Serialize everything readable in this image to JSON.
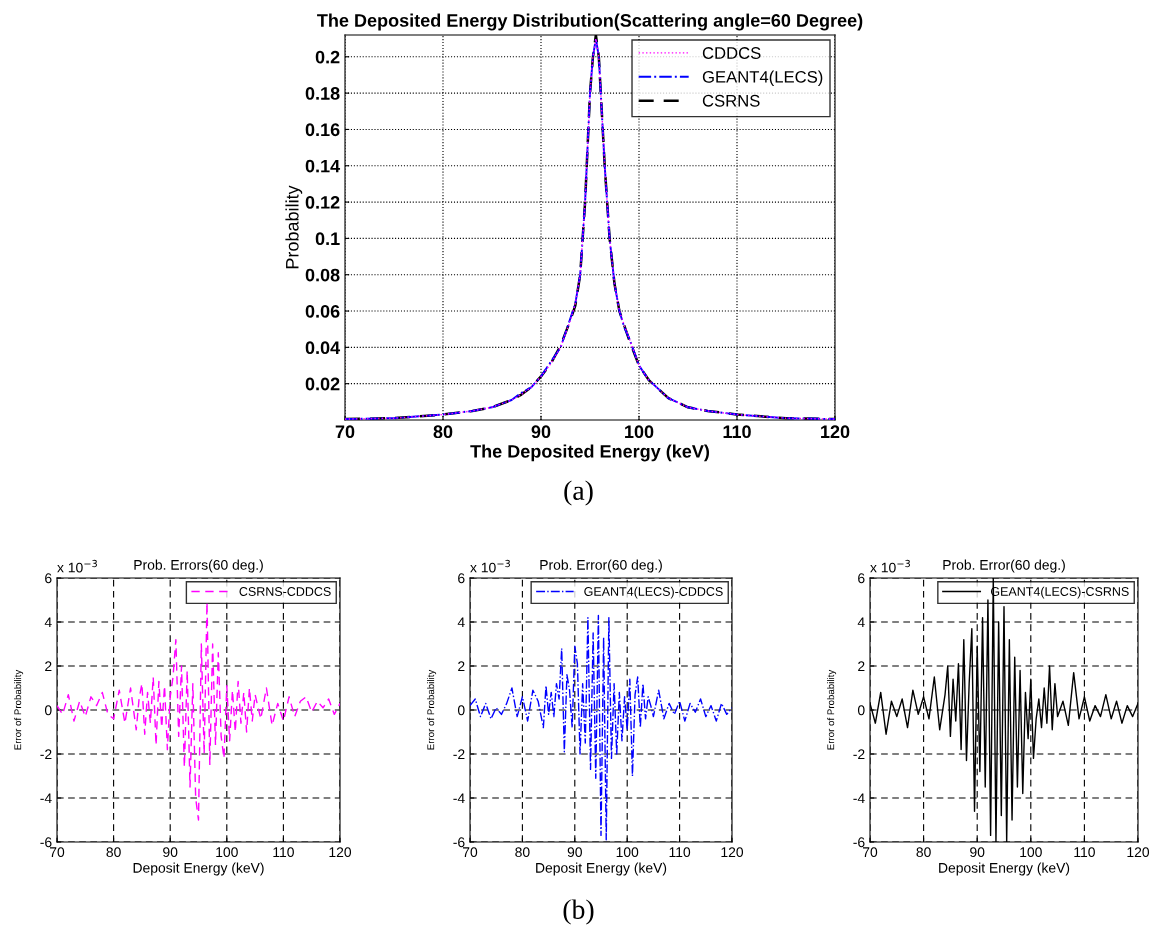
{
  "chart_data": [
    {
      "type": "line",
      "title": "The Deposited Energy Distribution(Scattering angle=60 Degree)",
      "xlabel": "The Deposited Energy (keV)",
      "ylabel": "Probability",
      "annotations": [
        "(a)"
      ],
      "x": [
        70,
        75,
        80,
        83,
        85,
        87,
        88,
        89,
        90,
        91,
        92,
        93,
        93.5,
        94,
        94.5,
        95,
        95.3,
        95.6,
        95.9,
        96.2,
        96.5,
        97,
        97.5,
        98,
        98.5,
        99,
        100,
        101,
        102,
        103,
        105,
        107,
        110,
        115,
        120
      ],
      "series": [
        {
          "name": "CDDCS",
          "color": "#ff00ff",
          "line_style": "dotted",
          "values": [
            0.0005,
            0.001,
            0.003,
            0.005,
            0.007,
            0.011,
            0.014,
            0.018,
            0.024,
            0.031,
            0.04,
            0.055,
            0.064,
            0.08,
            0.12,
            0.18,
            0.2,
            0.21,
            0.2,
            0.17,
            0.14,
            0.1,
            0.075,
            0.06,
            0.052,
            0.045,
            0.03,
            0.022,
            0.017,
            0.012,
            0.007,
            0.005,
            0.003,
            0.001,
            0.0005
          ]
        },
        {
          "name": "GEANT4(LECS)",
          "color": "#0000ff",
          "line_style": "dashdot",
          "values": [
            0.0005,
            0.001,
            0.003,
            0.005,
            0.007,
            0.011,
            0.015,
            0.018,
            0.024,
            0.032,
            0.04,
            0.056,
            0.064,
            0.08,
            0.12,
            0.18,
            0.2,
            0.21,
            0.2,
            0.17,
            0.14,
            0.1,
            0.075,
            0.06,
            0.051,
            0.045,
            0.03,
            0.022,
            0.017,
            0.012,
            0.007,
            0.005,
            0.003,
            0.001,
            0.0005
          ]
        },
        {
          "name": "CSRNS",
          "color": "#000000",
          "line_style": "dashed",
          "values": [
            0.0005,
            0.001,
            0.003,
            0.005,
            0.007,
            0.011,
            0.014,
            0.018,
            0.024,
            0.031,
            0.041,
            0.055,
            0.063,
            0.08,
            0.12,
            0.18,
            0.2,
            0.212,
            0.2,
            0.17,
            0.14,
            0.1,
            0.075,
            0.06,
            0.052,
            0.044,
            0.03,
            0.022,
            0.017,
            0.012,
            0.007,
            0.005,
            0.003,
            0.001,
            0.0005
          ]
        }
      ],
      "xlim": [
        70,
        120
      ],
      "xticks": [
        70,
        80,
        90,
        100,
        110,
        120
      ],
      "ylim": [
        0,
        0.212
      ],
      "yticks": [
        0.02,
        0.04,
        0.06,
        0.08,
        0.1,
        0.12,
        0.14,
        0.16,
        0.18,
        0.2
      ],
      "grid": true,
      "legend": "top right"
    },
    {
      "type": "line",
      "title": "Prob. Errors(60 deg.)",
      "xlabel": "Deposit Energy (keV)",
      "ylabel": "Error of Probability",
      "annotations": [
        "x 10$^{−3}$"
      ],
      "x": [
        70,
        71,
        72,
        73,
        74,
        75,
        76,
        77,
        78,
        79,
        80,
        81,
        82,
        83,
        84,
        84.5,
        85,
        85.5,
        86,
        86.5,
        87,
        87.5,
        88,
        88.5,
        89,
        89.5,
        90,
        90.5,
        91,
        91.5,
        92,
        92.5,
        93,
        93.5,
        94,
        94.5,
        95,
        95.5,
        96,
        96.5,
        97,
        97.5,
        98,
        98.5,
        99,
        99.5,
        100,
        100.5,
        101,
        101.5,
        102,
        102.5,
        103,
        103.5,
        104,
        104.5,
        105,
        106,
        107,
        108,
        109,
        110,
        111,
        112,
        113,
        114,
        115,
        116,
        117,
        118,
        119,
        120
      ],
      "series": [
        {
          "name": "CSRNS-CDDCS",
          "color": "#ff00ff",
          "line_style": "dashed",
          "values": [
            0.2,
            -0.2,
            0.7,
            -0.5,
            0.4,
            -0.3,
            0.6,
            0.2,
            0.8,
            -0.2,
            -0.4,
            0.9,
            -0.6,
            1.0,
            -0.9,
            0.5,
            1.2,
            -1.1,
            0.8,
            -0.6,
            1.5,
            -1.6,
            1.3,
            -0.8,
            1.1,
            -1.8,
            0.6,
            1.5,
            3.2,
            -1.2,
            2.0,
            -2.6,
            1.8,
            -3.5,
            1.2,
            -4.0,
            -5.0,
            3.0,
            -2.0,
            4.9,
            -2.5,
            3.0,
            -1.6,
            2.6,
            -1.2,
            -2.2,
            1.1,
            -1.4,
            0.9,
            -1.0,
            1.3,
            -0.6,
            0.8,
            -1.0,
            1.0,
            -0.5,
            0.7,
            -0.4,
            1.0,
            -0.7,
            0.3,
            -0.5,
            0.6,
            -0.3,
            0.4,
            0.6,
            -0.1,
            0.4,
            0.1,
            0.5,
            -0.2,
            0.3
          ]
        }
      ],
      "xlim": [
        70,
        120
      ],
      "xticks": [
        70,
        80,
        90,
        100,
        110,
        120
      ],
      "ylim": [
        -6,
        6
      ],
      "yticks": [
        -6,
        -4,
        -2,
        0,
        2,
        4,
        6
      ],
      "grid": true,
      "legend": "top right"
    },
    {
      "type": "line",
      "title": "Prob. Error(60 deg.)",
      "xlabel": "Deposit Energy (keV)",
      "ylabel": "Error of Probability",
      "annotations": [
        "x 10$^{−3}$",
        "(b)"
      ],
      "x": [
        70,
        71,
        72,
        73,
        74,
        75,
        76,
        77,
        78,
        79,
        80,
        81,
        82,
        83,
        84,
        84.5,
        85,
        85.5,
        86,
        86.5,
        87,
        87.5,
        88,
        88.5,
        89,
        89.5,
        90,
        90.5,
        91,
        91.5,
        92,
        92.5,
        93,
        93.5,
        94,
        94.5,
        95,
        95.5,
        96,
        96.5,
        97,
        97.5,
        98,
        98.5,
        99,
        99.5,
        100,
        100.5,
        101,
        101.5,
        102,
        102.5,
        103,
        103.5,
        104,
        104.5,
        105,
        106,
        107,
        108,
        109,
        110,
        111,
        112,
        113,
        114,
        115,
        116,
        117,
        118,
        119,
        120
      ],
      "series": [
        {
          "name": "GEANT4(LECS)-CDDCS",
          "color": "#0000ff",
          "line_style": "dashdot",
          "values": [
            0.2,
            0.5,
            -0.3,
            0.3,
            -0.4,
            0.1,
            -0.2,
            0.3,
            1.0,
            -0.3,
            0.6,
            -0.5,
            0.9,
            0.4,
            -0.8,
            1.1,
            -0.2,
            0.8,
            -0.3,
            1.2,
            0.5,
            2.8,
            -1.9,
            1.6,
            0.9,
            -0.8,
            2.9,
            2.1,
            -2.0,
            1.2,
            -1.5,
            4.2,
            -2.7,
            3.5,
            -3.1,
            4.3,
            -5.7,
            3.3,
            -5.9,
            4.2,
            -2.2,
            1.2,
            -2.0,
            0.8,
            -1.4,
            0.6,
            -0.9,
            1.4,
            -3.0,
            0.7,
            1.5,
            -0.8,
            1.2,
            -0.4,
            0.6,
            0.2,
            -0.3,
            0.9,
            -0.4,
            0.3,
            -0.2,
            0.4,
            -0.5,
            0.3,
            -0.1,
            0.5,
            -0.3,
            0.2,
            -0.5,
            0.3,
            -0.2,
            0.1
          ]
        }
      ],
      "xlim": [
        70,
        120
      ],
      "xticks": [
        70,
        80,
        90,
        100,
        110,
        120
      ],
      "ylim": [
        -6,
        6
      ],
      "yticks": [
        -6,
        -4,
        -2,
        0,
        2,
        4,
        6
      ],
      "grid": true,
      "legend": "top right"
    },
    {
      "type": "line",
      "title": "Prob. Error(60 deg.)",
      "xlabel": "Deposit Energy (keV)",
      "ylabel": "Error of Probability",
      "annotations": [
        "x 10$^{−3}$"
      ],
      "x": [
        70,
        71,
        72,
        73,
        74,
        75,
        76,
        77,
        78,
        79,
        80,
        81,
        82,
        83,
        84,
        84.5,
        85,
        85.5,
        86,
        86.5,
        87,
        87.5,
        88,
        88.5,
        89,
        89.5,
        90,
        90.5,
        91,
        91.5,
        92,
        92.5,
        93,
        93.5,
        94,
        94.5,
        95,
        95.5,
        96,
        96.5,
        97,
        97.5,
        98,
        98.5,
        99,
        99.5,
        100,
        100.5,
        101,
        101.5,
        102,
        102.5,
        103,
        103.5,
        104,
        104.5,
        105,
        106,
        107,
        108,
        109,
        110,
        111,
        112,
        113,
        114,
        115,
        116,
        117,
        118,
        119,
        120
      ],
      "series": [
        {
          "name": "GEANT4(LECS)-CSRNS",
          "color": "#000000",
          "line_style": "solid",
          "values": [
            0.3,
            -0.6,
            0.8,
            -1.1,
            0.4,
            -0.3,
            0.5,
            -0.8,
            0.9,
            -0.2,
            0.6,
            -0.4,
            1.5,
            -0.9,
            0.7,
            2.0,
            -1.2,
            1.4,
            -0.5,
            2.1,
            -1.8,
            3.2,
            -2.3,
            1.2,
            3.7,
            -4.6,
            2.9,
            -2.8,
            4.2,
            -3.5,
            5.0,
            -5.7,
            6.0,
            -6.0,
            4.0,
            -4.8,
            4.7,
            -6.0,
            3.2,
            -5.0,
            2.4,
            -3.5,
            1.8,
            -3.8,
            0.8,
            -1.3,
            1.4,
            -2.2,
            -0.4,
            0.5,
            -0.8,
            1.0,
            -0.6,
            2.0,
            -0.9,
            1.2,
            -0.3,
            0.4,
            -0.7,
            1.7,
            -0.4,
            0.6,
            -0.5,
            0.2,
            -0.3,
            0.7,
            -0.4,
            0.4,
            -0.6,
            0.2,
            -0.3,
            0.3
          ]
        }
      ],
      "xlim": [
        70,
        120
      ],
      "xticks": [
        70,
        80,
        90,
        100,
        110,
        120
      ],
      "ylim": [
        -6,
        6
      ],
      "yticks": [
        -6,
        -4,
        -2,
        0,
        2,
        4,
        6
      ],
      "grid": true,
      "legend": "top right"
    }
  ]
}
